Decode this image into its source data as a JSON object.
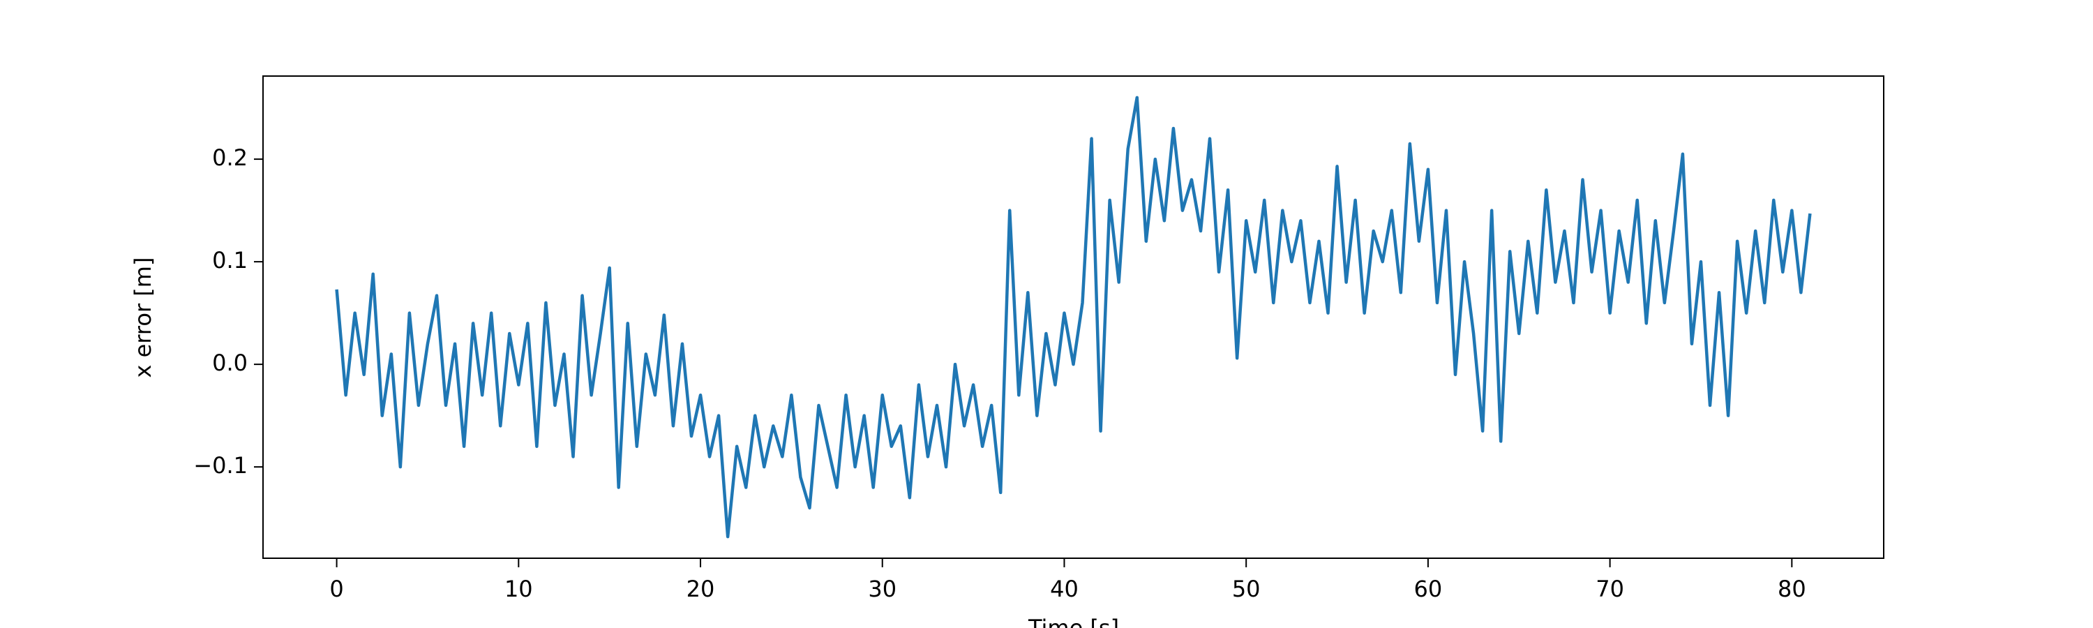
{
  "chart_data": {
    "type": "line",
    "x_label": "Time [s]",
    "y_label": "x error [m]",
    "x": [
      0,
      0.5,
      1,
      1.5,
      2,
      2.5,
      3,
      3.5,
      4,
      4.5,
      5,
      5.5,
      6,
      6.5,
      7,
      7.5,
      8,
      8.5,
      9,
      9.5,
      10,
      10.5,
      11,
      11.5,
      12,
      12.5,
      13,
      13.5,
      14,
      14.5,
      15,
      15.5,
      16,
      16.5,
      17,
      17.5,
      18,
      18.5,
      19,
      19.5,
      20,
      20.5,
      21,
      21.5,
      22,
      22.5,
      23,
      23.5,
      24,
      24.5,
      25,
      25.5,
      26,
      26.5,
      27,
      27.5,
      28,
      28.5,
      29,
      29.5,
      30,
      30.5,
      31,
      31.5,
      32,
      32.5,
      33,
      33.5,
      34,
      34.5,
      35,
      35.5,
      36,
      36.5,
      37,
      37.5,
      38,
      38.5,
      39,
      39.5,
      40,
      40.5,
      41,
      41.5,
      42,
      42.5,
      43,
      43.5,
      44,
      44.5,
      45,
      45.5,
      46,
      46.5,
      47,
      47.5,
      48,
      48.5,
      49,
      49.5,
      50,
      50.5,
      51,
      51.5,
      52,
      52.5,
      53,
      53.5,
      54,
      54.5,
      55,
      55.5,
      56,
      56.5,
      57,
      57.5,
      58,
      58.5,
      59,
      59.5,
      60,
      60.5,
      61,
      61.5,
      62,
      62.5,
      63,
      63.5,
      64,
      64.5,
      65,
      65.5,
      66,
      66.5,
      67,
      67.5,
      68,
      68.5,
      69,
      69.5,
      70,
      70.5,
      71,
      71.5,
      72,
      72.5,
      73,
      73.5,
      74,
      74.5,
      75,
      75.5,
      76,
      76.5,
      77,
      77.5,
      78,
      78.5,
      79,
      79.5,
      80,
      80.5,
      81
    ],
    "series": [
      {
        "name": "x error",
        "color": "#1f77b4",
        "values": [
          0.073,
          -0.03,
          0.05,
          -0.01,
          0.088,
          -0.05,
          0.01,
          -0.1,
          0.05,
          -0.04,
          0.02,
          0.067,
          -0.04,
          0.02,
          -0.08,
          0.04,
          -0.03,
          0.05,
          -0.06,
          0.03,
          -0.02,
          0.04,
          -0.08,
          0.06,
          -0.04,
          0.01,
          -0.09,
          0.067,
          -0.03,
          0.03,
          0.094,
          -0.12,
          0.04,
          -0.08,
          0.01,
          -0.03,
          0.048,
          -0.06,
          0.02,
          -0.07,
          -0.03,
          -0.09,
          -0.05,
          -0.168,
          -0.08,
          -0.12,
          -0.05,
          -0.1,
          -0.06,
          -0.09,
          -0.03,
          -0.11,
          -0.14,
          -0.04,
          -0.08,
          -0.12,
          -0.03,
          -0.1,
          -0.05,
          -0.12,
          -0.03,
          -0.08,
          -0.06,
          -0.13,
          -0.02,
          -0.09,
          -0.04,
          -0.1,
          0.0,
          -0.06,
          -0.02,
          -0.08,
          -0.04,
          -0.125,
          0.15,
          -0.03,
          0.07,
          -0.05,
          0.03,
          -0.02,
          0.05,
          0.0,
          0.06,
          0.22,
          -0.065,
          0.16,
          0.08,
          0.21,
          0.26,
          0.12,
          0.2,
          0.14,
          0.23,
          0.15,
          0.18,
          0.13,
          0.22,
          0.09,
          0.17,
          0.006,
          0.14,
          0.09,
          0.16,
          0.06,
          0.15,
          0.1,
          0.14,
          0.06,
          0.12,
          0.05,
          0.193,
          0.08,
          0.16,
          0.05,
          0.13,
          0.1,
          0.15,
          0.07,
          0.215,
          0.12,
          0.19,
          0.06,
          0.15,
          -0.01,
          0.1,
          0.03,
          -0.065,
          0.15,
          -0.075,
          0.11,
          0.03,
          0.12,
          0.05,
          0.17,
          0.08,
          0.13,
          0.06,
          0.18,
          0.09,
          0.15,
          0.05,
          0.13,
          0.08,
          0.16,
          0.04,
          0.14,
          0.06,
          0.13,
          0.205,
          0.02,
          0.1,
          -0.04,
          0.07,
          -0.05,
          0.12,
          0.05,
          0.13,
          0.06,
          0.16,
          0.09,
          0.15,
          0.07,
          0.147
        ]
      }
    ],
    "xlim": [
      -4.05,
      85.05
    ],
    "xticks": [
      0,
      10,
      20,
      30,
      40,
      50,
      60,
      70,
      80
    ],
    "ylim": [
      -0.189,
      0.281
    ],
    "yticks": [
      {
        "value": -0.1,
        "label": "−0.1"
      },
      {
        "value": 0,
        "label": "0.0"
      },
      0.1,
      0.2
    ]
  }
}
